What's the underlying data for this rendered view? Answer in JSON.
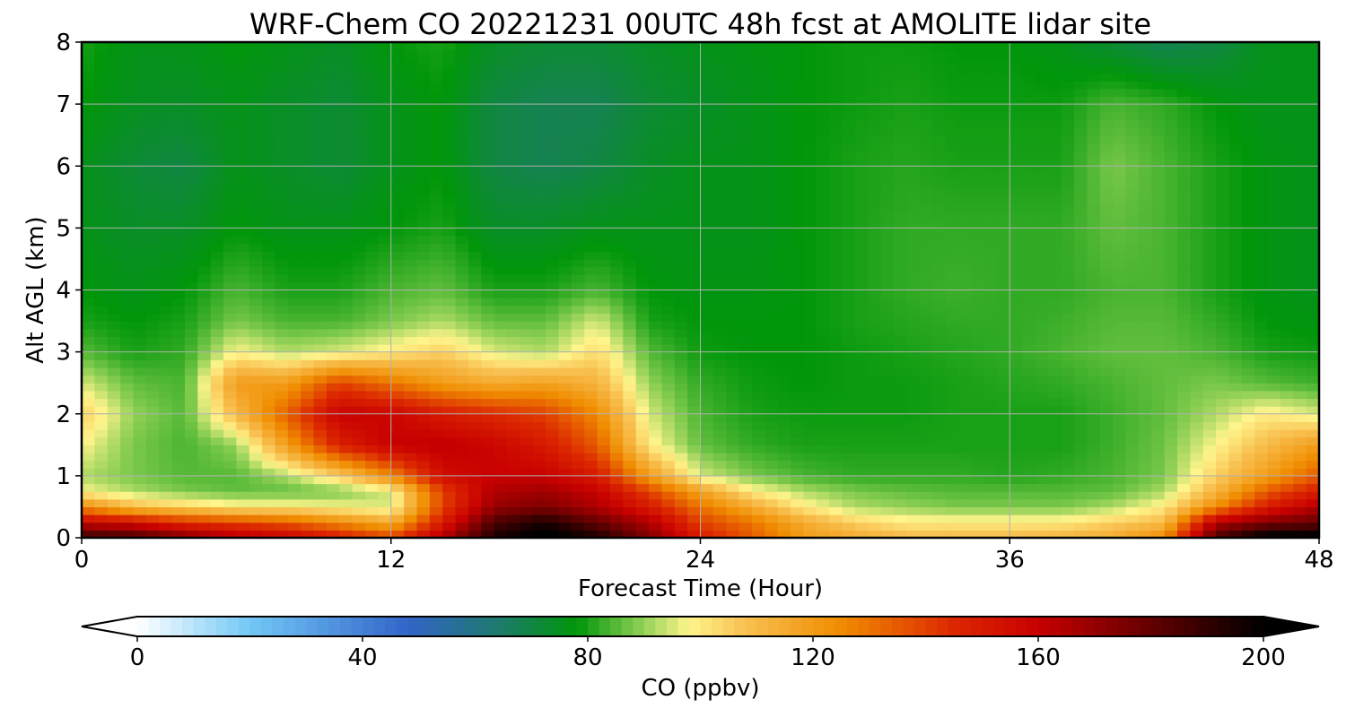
{
  "chart_data": {
    "type": "heatmap",
    "title": "WRF-Chem CO  20221231 00UTC 48h fcst at AMOLITE lidar site",
    "xlabel": "Forecast Time (Hour)",
    "ylabel": "Alt AGL (km)",
    "xlim": [
      0,
      48
    ],
    "ylim": [
      0,
      8
    ],
    "xticks": [
      0,
      12,
      24,
      36,
      48
    ],
    "yticks": [
      0,
      1,
      2,
      3,
      4,
      5,
      6,
      7,
      8
    ],
    "grid": true,
    "colorbar": {
      "label": "CO  (ppbv)",
      "range": [
        0,
        200
      ],
      "ticks": [
        0,
        40,
        80,
        120,
        160,
        200
      ],
      "extend": "both",
      "orientation": "horizontal",
      "colors": [
        {
          "v": 0,
          "c": "#ffffff"
        },
        {
          "v": 20,
          "c": "#72c8f6"
        },
        {
          "v": 48,
          "c": "#3264c8"
        },
        {
          "v": 64,
          "c": "#1e7a6e"
        },
        {
          "v": 78,
          "c": "#00960a"
        },
        {
          "v": 88,
          "c": "#7ac84a"
        },
        {
          "v": 98,
          "c": "#fff58c"
        },
        {
          "v": 108,
          "c": "#f8c050"
        },
        {
          "v": 125,
          "c": "#f08c00"
        },
        {
          "v": 145,
          "c": "#dc2800"
        },
        {
          "v": 160,
          "c": "#c80000"
        },
        {
          "v": 180,
          "c": "#640000"
        },
        {
          "v": 200,
          "c": "#000000"
        }
      ]
    },
    "altitudes_km": [
      0,
      0.25,
      0.5,
      0.75,
      1,
      1.5,
      2,
      2.5,
      3,
      3.5,
      4,
      5,
      6,
      7,
      8
    ],
    "times_h": [
      0,
      2,
      4,
      6,
      8,
      10,
      12,
      14,
      16,
      18,
      20,
      22,
      24,
      26,
      28,
      30,
      32,
      34,
      36,
      38,
      40,
      42,
      44,
      46,
      48
    ],
    "values_ppbv": [
      [
        190,
        188,
        175,
        165,
        160,
        150,
        140,
        165,
        195,
        205,
        195,
        175,
        150,
        135,
        120,
        115,
        110,
        110,
        110,
        112,
        115,
        125,
        185,
        205,
        205
      ],
      [
        160,
        155,
        145,
        140,
        135,
        125,
        115,
        150,
        185,
        195,
        180,
        165,
        140,
        130,
        115,
        105,
        100,
        100,
        100,
        100,
        105,
        110,
        165,
        175,
        180
      ],
      [
        125,
        110,
        105,
        100,
        100,
        98,
        95,
        140,
        170,
        175,
        165,
        150,
        130,
        115,
        100,
        92,
        90,
        88,
        88,
        88,
        92,
        100,
        125,
        150,
        165
      ],
      [
        98,
        92,
        88,
        86,
        86,
        88,
        95,
        140,
        165,
        168,
        160,
        140,
        118,
        100,
        92,
        88,
        86,
        85,
        85,
        85,
        86,
        92,
        112,
        135,
        150
      ],
      [
        92,
        88,
        85,
        85,
        92,
        105,
        125,
        155,
        160,
        160,
        150,
        120,
        95,
        88,
        84,
        82,
        82,
        82,
        81,
        82,
        84,
        88,
        105,
        120,
        135
      ],
      [
        98,
        88,
        84,
        90,
        120,
        148,
        160,
        162,
        158,
        150,
        135,
        100,
        86,
        82,
        80,
        80,
        80,
        80,
        80,
        80,
        83,
        87,
        98,
        110,
        120
      ],
      [
        105,
        90,
        85,
        110,
        135,
        160,
        158,
        150,
        145,
        140,
        125,
        95,
        84,
        80,
        79,
        79,
        79,
        80,
        80,
        80,
        83,
        86,
        92,
        100,
        95
      ],
      [
        95,
        86,
        84,
        120,
        120,
        140,
        130,
        120,
        115,
        118,
        112,
        90,
        82,
        79,
        78,
        79,
        79,
        80,
        81,
        82,
        84,
        86,
        88,
        85,
        83
      ],
      [
        85,
        80,
        82,
        98,
        92,
        95,
        100,
        105,
        95,
        92,
        103,
        85,
        79,
        78,
        78,
        79,
        80,
        81,
        82,
        84,
        86,
        86,
        84,
        80,
        79
      ],
      [
        80,
        78,
        80,
        88,
        84,
        84,
        88,
        92,
        86,
        86,
        95,
        80,
        78,
        78,
        78,
        80,
        81,
        82,
        82,
        83,
        85,
        85,
        82,
        78,
        77
      ],
      [
        78,
        76,
        78,
        84,
        80,
        80,
        84,
        86,
        80,
        80,
        84,
        78,
        77,
        77,
        78,
        80,
        82,
        83,
        82,
        82,
        84,
        84,
        80,
        77,
        76
      ],
      [
        76,
        74,
        74,
        78,
        76,
        76,
        78,
        80,
        74,
        74,
        76,
        76,
        76,
        76,
        78,
        80,
        82,
        82,
        82,
        82,
        86,
        84,
        80,
        77,
        76
      ],
      [
        76,
        72,
        70,
        76,
        74,
        72,
        76,
        78,
        70,
        68,
        70,
        74,
        76,
        76,
        78,
        80,
        81,
        80,
        80,
        80,
        88,
        84,
        80,
        77,
        76
      ],
      [
        78,
        75,
        74,
        76,
        74,
        72,
        76,
        78,
        70,
        68,
        68,
        72,
        74,
        76,
        78,
        79,
        80,
        79,
        79,
        79,
        84,
        82,
        78,
        76,
        76
      ],
      [
        80,
        76,
        76,
        78,
        76,
        74,
        78,
        80,
        74,
        72,
        72,
        74,
        76,
        77,
        78,
        79,
        79,
        78,
        78,
        76,
        72,
        68,
        70,
        76,
        76
      ]
    ]
  }
}
